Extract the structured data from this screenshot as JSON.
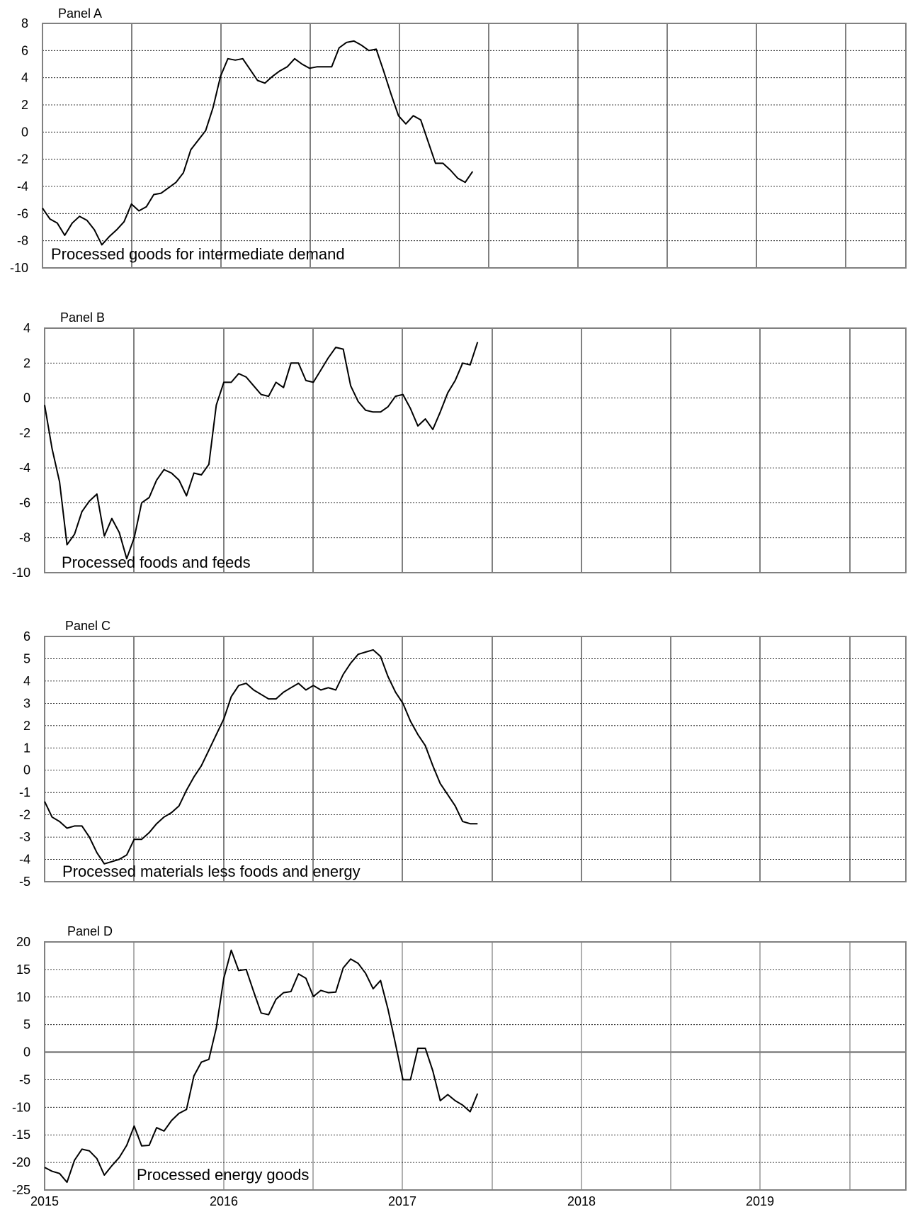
{
  "chart_data": [
    {
      "type": "line",
      "panel_label": "Panel A",
      "annotation": "Processed goods for intermediate demand",
      "x_start": "2015-01",
      "x_labels": [
        "2015",
        "2016",
        "2017",
        "2018",
        "2019"
      ],
      "ylim": [
        -10,
        8
      ],
      "yticks": [
        "8",
        "6",
        "4",
        "2",
        "0",
        "-2",
        "-4",
        "-6",
        "-8",
        "-10"
      ],
      "grid": true,
      "series": [
        {
          "values": [
            -5.6,
            -6.4,
            -6.7,
            -7.6,
            -6.7,
            -6.2,
            -6.5,
            -7.2,
            -8.3,
            -7.7,
            -7.2,
            -6.6,
            -5.3,
            -5.8,
            -5.5,
            -4.6,
            -4.5,
            -4.1,
            -3.7,
            -3.0,
            -1.3,
            -0.6,
            0.1,
            1.8,
            4.1,
            5.4,
            5.3,
            5.4,
            4.6,
            3.8,
            3.6,
            4.1,
            4.5,
            4.8,
            5.4,
            5.0,
            4.7,
            4.8,
            4.8,
            4.8,
            6.2,
            6.6,
            6.7,
            6.4,
            6.0,
            6.1,
            4.5,
            2.8,
            1.2,
            0.6,
            1.2,
            0.9,
            -0.7,
            -2.3,
            -2.3,
            -2.8,
            -3.4,
            -3.7,
            -2.9
          ]
        }
      ]
    },
    {
      "type": "line",
      "panel_label": "Panel B",
      "annotation": "Processed foods and feeds",
      "x_start": "2015-01",
      "x_labels": [
        "2015",
        "2016",
        "2017",
        "2018",
        "2019"
      ],
      "ylim": [
        -10,
        4
      ],
      "yticks": [
        "4",
        "2",
        "0",
        "-2",
        "-4",
        "-6",
        "-8",
        "-10"
      ],
      "grid": true,
      "series": [
        {
          "values": [
            -0.4,
            -2.9,
            -4.8,
            -8.4,
            -7.8,
            -6.5,
            -5.9,
            -5.5,
            -7.9,
            -6.9,
            -7.7,
            -9.2,
            -8.0,
            -6.0,
            -5.7,
            -4.7,
            -4.1,
            -4.3,
            -4.7,
            -5.6,
            -4.3,
            -4.4,
            -3.8,
            -0.4,
            0.9,
            0.9,
            1.4,
            1.2,
            0.7,
            0.2,
            0.1,
            0.9,
            0.6,
            2.0,
            2.0,
            1.0,
            0.9,
            1.6,
            2.3,
            2.9,
            2.8,
            0.7,
            -0.2,
            -0.7,
            -0.8,
            -0.8,
            -0.5,
            0.1,
            0.2,
            -0.6,
            -1.6,
            -1.2,
            -1.8,
            -0.8,
            0.3,
            1.0,
            2.0,
            1.9,
            3.2
          ]
        }
      ]
    },
    {
      "type": "line",
      "panel_label": "Panel C",
      "annotation": "Processed materials less foods and energy",
      "x_start": "2015-01",
      "x_labels": [
        "2015",
        "2016",
        "2017",
        "2018",
        "2019"
      ],
      "ylim": [
        -5,
        6
      ],
      "yticks": [
        "6",
        "5",
        "4",
        "3",
        "2",
        "1",
        "0",
        "-1",
        "-2",
        "-3",
        "-4",
        "-5"
      ],
      "grid": true,
      "series": [
        {
          "values": [
            -1.4,
            -2.1,
            -2.3,
            -2.6,
            -2.5,
            -2.5,
            -3.0,
            -3.7,
            -4.2,
            -4.1,
            -4.0,
            -3.8,
            -3.1,
            -3.1,
            -2.8,
            -2.4,
            -2.1,
            -1.9,
            -1.6,
            -0.9,
            -0.3,
            0.2,
            0.9,
            1.6,
            2.3,
            3.3,
            3.8,
            3.9,
            3.6,
            3.4,
            3.2,
            3.2,
            3.5,
            3.7,
            3.9,
            3.6,
            3.8,
            3.6,
            3.7,
            3.6,
            4.3,
            4.8,
            5.2,
            5.3,
            5.4,
            5.1,
            4.2,
            3.5,
            3.0,
            2.2,
            1.6,
            1.1,
            0.2,
            -0.6,
            -1.1,
            -1.6,
            -2.3,
            -2.4,
            -2.4
          ]
        }
      ]
    },
    {
      "type": "line",
      "panel_label": "Panel D",
      "annotation": "Processed energy goods",
      "x_start": "2015-01",
      "x_labels": [
        "2015",
        "2016",
        "2017",
        "2018",
        "2019"
      ],
      "ylim": [
        -25,
        20
      ],
      "yticks": [
        "20",
        "15",
        "10",
        "5",
        "0",
        "-5",
        "-10",
        "-15",
        "-20",
        "-25"
      ],
      "grid": true,
      "series": [
        {
          "values": [
            -20.9,
            -21.6,
            -22.0,
            -23.6,
            -19.6,
            -17.6,
            -17.9,
            -19.3,
            -22.3,
            -20.6,
            -19.1,
            -16.9,
            -13.4,
            -17.0,
            -16.9,
            -13.7,
            -14.3,
            -12.4,
            -11.1,
            -10.4,
            -4.3,
            -1.8,
            -1.3,
            4.4,
            13.4,
            18.5,
            14.8,
            15.0,
            11.0,
            7.1,
            6.8,
            9.6,
            10.8,
            11.0,
            14.2,
            13.4,
            10.1,
            11.2,
            10.8,
            10.9,
            15.3,
            16.9,
            16.1,
            14.3,
            11.5,
            13.0,
            7.8,
            1.5,
            -5.0,
            -5.0,
            0.7,
            0.7,
            -3.4,
            -8.8,
            -7.7,
            -8.8,
            -9.6,
            -10.8,
            -7.5
          ]
        }
      ]
    }
  ]
}
